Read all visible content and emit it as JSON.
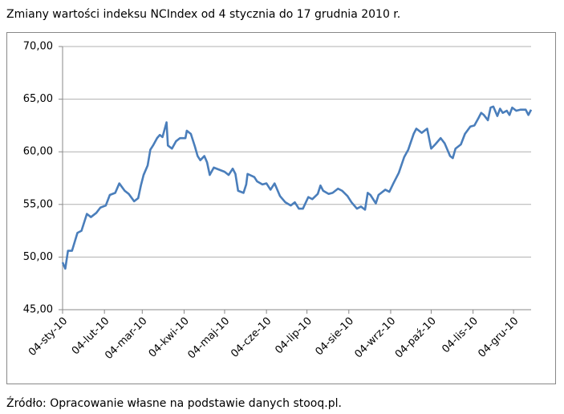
{
  "chart_data": {
    "type": "line",
    "title": "Zmiany wartości indeksu NCIndex od 4 stycznia do 17 grudnia 2010 r.",
    "source": "Źródło: Opracowanie własne na podstawie danych stooq.pl.",
    "x": [
      "2010-01-04",
      "2010-01-06",
      "2010-01-08",
      "2010-01-11",
      "2010-01-15",
      "2010-01-18",
      "2010-01-22",
      "2010-01-25",
      "2010-01-29",
      "2010-02-01",
      "2010-02-05",
      "2010-02-08",
      "2010-02-12",
      "2010-02-15",
      "2010-02-19",
      "2010-02-22",
      "2010-02-26",
      "2010-03-01",
      "2010-03-03",
      "2010-03-05",
      "2010-03-08",
      "2010-03-10",
      "2010-03-12",
      "2010-03-15",
      "2010-03-17",
      "2010-03-19",
      "2010-03-22",
      "2010-03-23",
      "2010-03-26",
      "2010-03-29",
      "2010-04-01",
      "2010-04-05",
      "2010-04-06",
      "2010-04-09",
      "2010-04-12",
      "2010-04-14",
      "2010-04-16",
      "2010-04-19",
      "2010-04-21",
      "2010-04-23",
      "2010-04-26",
      "2010-04-30",
      "2010-05-04",
      "2010-05-07",
      "2010-05-10",
      "2010-05-12",
      "2010-05-14",
      "2010-05-18",
      "2010-05-20",
      "2010-05-21",
      "2010-05-26",
      "2010-05-28",
      "2010-06-01",
      "2010-06-04",
      "2010-06-07",
      "2010-06-10",
      "2010-06-14",
      "2010-06-18",
      "2010-06-22",
      "2010-06-25",
      "2010-06-28",
      "2010-07-01",
      "2010-07-05",
      "2010-07-08",
      "2010-07-12",
      "2010-07-14",
      "2010-07-16",
      "2010-07-20",
      "2010-07-23",
      "2010-07-27",
      "2010-07-30",
      "2010-08-03",
      "2010-08-06",
      "2010-08-10",
      "2010-08-13",
      "2010-08-16",
      "2010-08-18",
      "2010-08-20",
      "2010-08-24",
      "2010-08-26",
      "2010-08-31",
      "2010-09-03",
      "2010-09-06",
      "2010-09-10",
      "2010-09-14",
      "2010-09-17",
      "2010-09-21",
      "2010-09-23",
      "2010-09-27",
      "2010-10-01",
      "2010-10-04",
      "2010-10-07",
      "2010-10-11",
      "2010-10-14",
      "2010-10-18",
      "2010-10-20",
      "2010-10-22",
      "2010-10-26",
      "2010-10-29",
      "2010-11-02",
      "2010-11-05",
      "2010-11-08",
      "2010-11-10",
      "2010-11-12",
      "2010-11-15",
      "2010-11-17",
      "2010-11-19",
      "2010-11-22",
      "2010-11-24",
      "2010-11-26",
      "2010-11-29",
      "2010-12-01",
      "2010-12-03",
      "2010-12-06",
      "2010-12-09",
      "2010-12-13",
      "2010-12-15",
      "2010-12-17"
    ],
    "series": [
      {
        "name": "NCIndex",
        "color": "#4a7ebb",
        "values": [
          49.5,
          48.9,
          50.6,
          50.6,
          52.3,
          52.5,
          54.1,
          53.8,
          54.2,
          54.7,
          54.9,
          55.9,
          56.1,
          57.0,
          56.3,
          56.0,
          55.3,
          55.6,
          56.8,
          57.8,
          58.7,
          60.2,
          60.6,
          61.3,
          61.6,
          61.4,
          62.8,
          60.6,
          60.3,
          61.0,
          61.3,
          61.3,
          62.0,
          61.7,
          60.5,
          59.6,
          59.2,
          59.6,
          59.0,
          57.8,
          58.5,
          58.3,
          58.1,
          57.8,
          58.4,
          57.9,
          56.3,
          56.1,
          56.9,
          57.9,
          57.6,
          57.2,
          56.9,
          57.0,
          56.4,
          57.0,
          55.8,
          55.2,
          54.9,
          55.2,
          54.6,
          54.6,
          55.7,
          55.5,
          56.0,
          56.8,
          56.3,
          56.0,
          56.1,
          56.5,
          56.3,
          55.8,
          55.2,
          54.6,
          54.8,
          54.5,
          56.1,
          55.9,
          55.1,
          55.9,
          56.4,
          56.2,
          57.0,
          58.0,
          59.5,
          60.2,
          61.7,
          62.2,
          61.8,
          62.2,
          60.3,
          60.7,
          61.3,
          60.8,
          59.6,
          59.4,
          60.3,
          60.7,
          61.7,
          62.4,
          62.5,
          63.2,
          63.7,
          63.5,
          63.0,
          64.2,
          64.3,
          63.4,
          64.1,
          63.7,
          63.9,
          63.5,
          64.2,
          63.9,
          64.0,
          64.0,
          63.5,
          64.0
        ]
      }
    ],
    "xlim": [
      "2010-01-04",
      "2010-12-17"
    ],
    "xticks": [
      {
        "value": "2010-01-04",
        "label": "04-sty-10"
      },
      {
        "value": "2010-02-04",
        "label": "04-lut-10"
      },
      {
        "value": "2010-03-04",
        "label": "04-mar-10"
      },
      {
        "value": "2010-04-04",
        "label": "04-kwi-10"
      },
      {
        "value": "2010-05-04",
        "label": "04-maj-10"
      },
      {
        "value": "2010-06-04",
        "label": "04-cze-10"
      },
      {
        "value": "2010-07-04",
        "label": "04-lip-10"
      },
      {
        "value": "2010-08-04",
        "label": "04-sie-10"
      },
      {
        "value": "2010-09-04",
        "label": "04-wrz-10"
      },
      {
        "value": "2010-10-04",
        "label": "04-paź-10"
      },
      {
        "value": "2010-11-04",
        "label": "04-lis-10"
      },
      {
        "value": "2010-12-04",
        "label": "04-gru-10"
      }
    ],
    "ylim": [
      45,
      70
    ],
    "yticks": [
      {
        "value": 45,
        "label": "45,00"
      },
      {
        "value": 50,
        "label": "50,00"
      },
      {
        "value": 55,
        "label": "55,00"
      },
      {
        "value": 60,
        "label": "60,00"
      },
      {
        "value": 65,
        "label": "65,00"
      },
      {
        "value": 70,
        "label": "70,00"
      }
    ],
    "grid": true
  }
}
